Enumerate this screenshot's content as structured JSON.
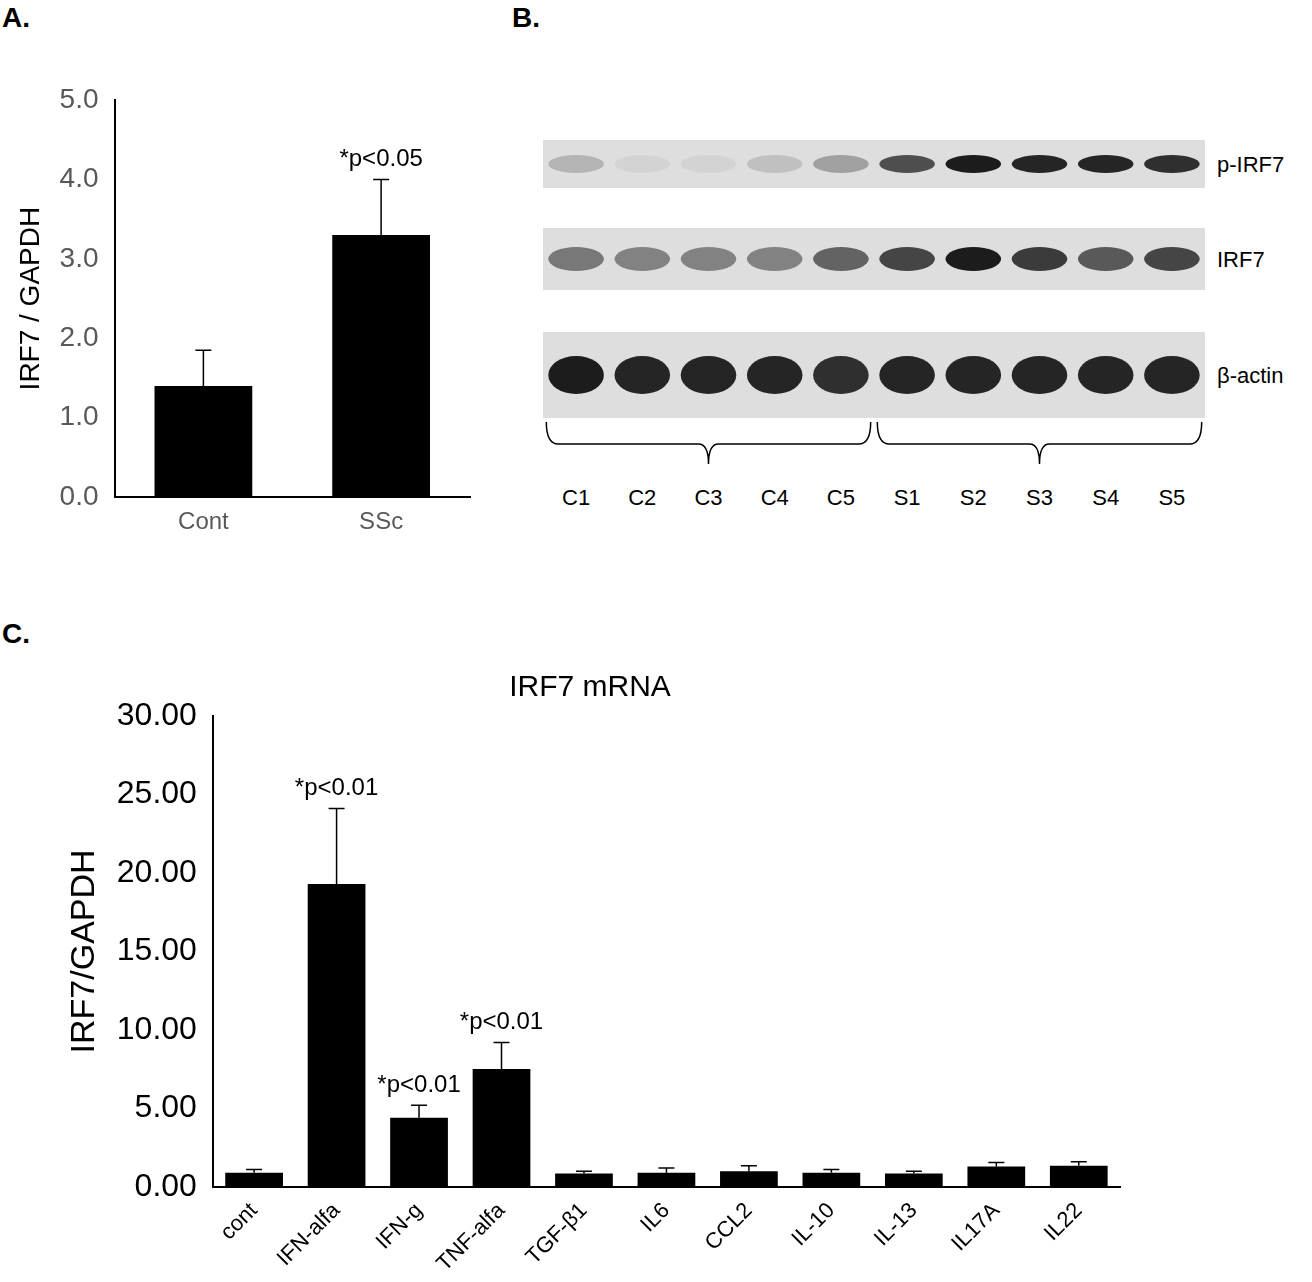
{
  "panel_labels": [
    "A.",
    "B.",
    "C."
  ],
  "chart_data": [
    {
      "type": "bar",
      "y_label": "IRF7 / GAPDH",
      "categories": [
        "Cont",
        "SSc"
      ],
      "values": [
        1.4,
        3.3
      ],
      "errors": [
        0.45,
        0.7
      ],
      "color": "#000000",
      "ylim": [
        0,
        5
      ],
      "yticks": [
        {
          "value": 0,
          "label": "0.0"
        },
        {
          "value": 1,
          "label": "1.0"
        },
        {
          "value": 2,
          "label": "2.0"
        },
        {
          "value": 3,
          "label": "3.0"
        },
        {
          "value": 4,
          "label": "4.0"
        },
        {
          "value": 5,
          "label": "5.0"
        }
      ],
      "annotations": [
        {
          "category": "SSc",
          "text": "*p<0.05"
        }
      ],
      "grid": false
    },
    {
      "type": "bar",
      "title": "IRF7 mRNA",
      "y_label": "IRF7/GAPDH",
      "categories": [
        "cont",
        "IFN-alfa",
        "IFN-g",
        "TNF-alfa",
        "TGF-β1",
        "IL6",
        "CCL2",
        "IL-10",
        "IL-13",
        "IL17A",
        "IL22"
      ],
      "values": [
        0.9,
        19.3,
        4.4,
        7.5,
        0.85,
        0.9,
        1.0,
        0.9,
        0.85,
        1.3,
        1.35
      ],
      "errors": [
        0.2,
        4.8,
        0.8,
        1.7,
        0.15,
        0.3,
        0.35,
        0.2,
        0.15,
        0.25,
        0.25
      ],
      "color": "#000000",
      "ylim": [
        0,
        30
      ],
      "yticks": [
        {
          "value": 0,
          "label": "0.00"
        },
        {
          "value": 5,
          "label": "5.00"
        },
        {
          "value": 10,
          "label": "10.00"
        },
        {
          "value": 15,
          "label": "15.00"
        },
        {
          "value": 20,
          "label": "20.00"
        },
        {
          "value": 25,
          "label": "25.00"
        },
        {
          "value": 30,
          "label": "30.00"
        }
      ],
      "annotations": [
        {
          "category": "IFN-alfa",
          "text": "*p<0.01"
        },
        {
          "category": "IFN-g",
          "text": "*p<0.01"
        },
        {
          "category": "TNF-alfa",
          "text": "*p<0.01"
        }
      ],
      "grid": false
    }
  ],
  "blot": {
    "lanes": [
      "C1",
      "C2",
      "C3",
      "C4",
      "C5",
      "S1",
      "S2",
      "S3",
      "S4",
      "S5"
    ],
    "rows": [
      {
        "label": "p-IRF7",
        "band_intensity": [
          0.2,
          0.05,
          0.05,
          0.15,
          0.3,
          0.7,
          0.95,
          0.9,
          0.9,
          0.85
        ]
      },
      {
        "label": "IRF7",
        "band_intensity": [
          0.5,
          0.45,
          0.45,
          0.45,
          0.6,
          0.75,
          0.95,
          0.8,
          0.65,
          0.75
        ]
      },
      {
        "label": "β-actin",
        "band_intensity": [
          0.95,
          0.9,
          0.9,
          0.9,
          0.85,
          0.9,
          0.9,
          0.9,
          0.9,
          0.9
        ]
      }
    ]
  }
}
